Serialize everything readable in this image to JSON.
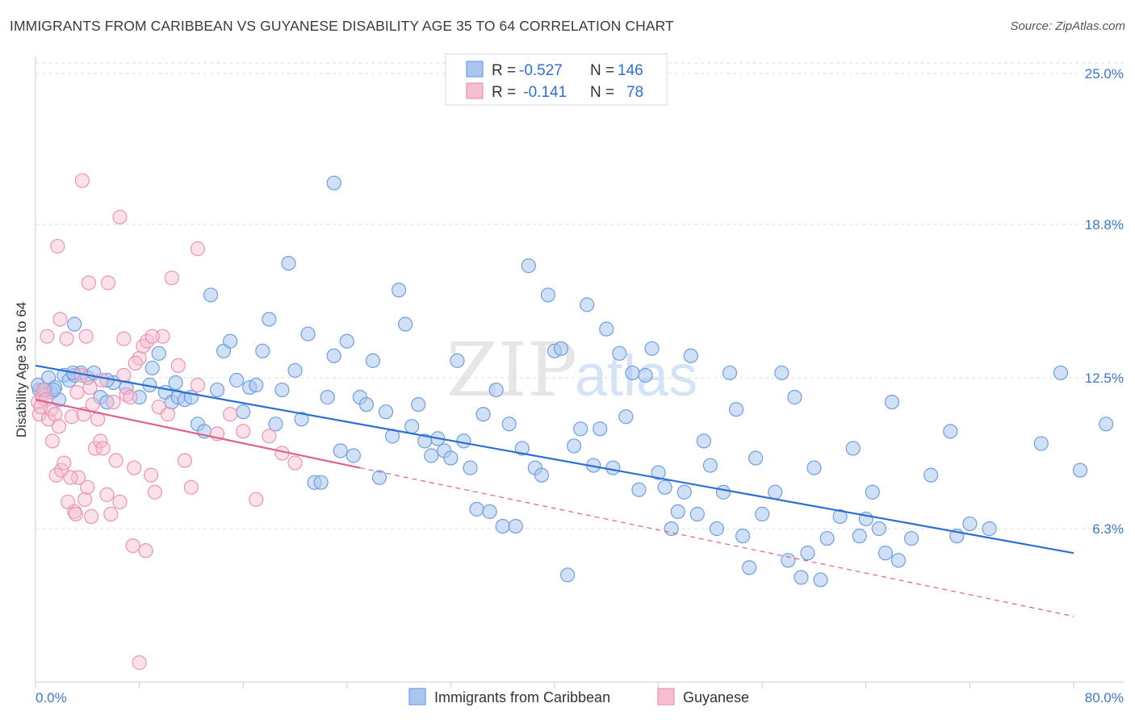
{
  "header": {
    "title": "IMMIGRANTS FROM CARIBBEAN VS GUYANESE DISABILITY AGE 35 TO 64 CORRELATION CHART",
    "source": "Source: ZipAtlas.com"
  },
  "watermark": {
    "zip": "ZIP",
    "atlas": "atlas"
  },
  "legend_box": {
    "rows": [
      {
        "r_label": "R = ",
        "r_value": "-0.527",
        "n_label": "N = ",
        "n_value": "146"
      },
      {
        "r_label": "R = ",
        "r_value": " -0.141",
        "n_label": "N = ",
        "n_value": "78"
      }
    ]
  },
  "colors": {
    "blue_fill": "#a9c6ef",
    "blue_stroke": "#6f9fe0",
    "blue_line": "#2b6fd2",
    "pink_fill": "#f6bcd0",
    "pink_stroke": "#ee93b3",
    "pink_line": "#e0608e",
    "grid": "#dddddd",
    "axis_label": "#3a78c9"
  },
  "chart_data": {
    "type": "scatter",
    "title": "IMMIGRANTS FROM CARIBBEAN VS GUYANESE DISABILITY AGE 35 TO 64 CORRELATION CHART",
    "xlabel": "",
    "ylabel": "Disability Age 35 to 64",
    "xlim": [
      0,
      80
    ],
    "ylim": [
      0,
      26.5
    ],
    "x_tick_labels": [
      "0.0%",
      "80.0%"
    ],
    "y_ticks": [
      6.3,
      12.5,
      18.8,
      25.0
    ],
    "y_tick_labels": [
      "6.3%",
      "12.5%",
      "18.8%",
      "25.0%"
    ],
    "grid": true,
    "legend_position": "bottom-center",
    "series": [
      {
        "name": "Immigrants from Caribbean",
        "R": -0.527,
        "N": 146,
        "trend": {
          "x": [
            0,
            80
          ],
          "y": [
            13.0,
            5.3
          ]
        },
        "points": [
          [
            0.3,
            12.0
          ],
          [
            0.5,
            11.8
          ],
          [
            0.8,
            12.0
          ],
          [
            1.0,
            12.5
          ],
          [
            1.2,
            11.9
          ],
          [
            1.5,
            12.1
          ],
          [
            1.8,
            11.6
          ],
          [
            2.2,
            12.6
          ],
          [
            2.6,
            12.4
          ],
          [
            3.0,
            12.6
          ],
          [
            3.5,
            12.7
          ],
          [
            4.0,
            12.5
          ],
          [
            4.5,
            12.7
          ],
          [
            5.0,
            11.7
          ],
          [
            5.5,
            11.5
          ],
          [
            6.0,
            12.3
          ],
          [
            0.2,
            12.2
          ],
          [
            0.7,
            12.0
          ],
          [
            1.4,
            12.0
          ],
          [
            2.9,
            12.7
          ],
          [
            3.0,
            14.7
          ],
          [
            5.5,
            12.4
          ],
          [
            7.0,
            12.1
          ],
          [
            8.0,
            11.7
          ],
          [
            8.8,
            12.2
          ],
          [
            9.0,
            12.9
          ],
          [
            9.5,
            13.5
          ],
          [
            10.0,
            11.9
          ],
          [
            10.5,
            11.5
          ],
          [
            11.0,
            11.7
          ],
          [
            11.5,
            11.6
          ],
          [
            12.0,
            11.7
          ],
          [
            12.5,
            10.6
          ],
          [
            13.0,
            10.3
          ],
          [
            13.5,
            15.9
          ],
          [
            14.0,
            12.0
          ],
          [
            14.5,
            13.6
          ],
          [
            15.0,
            14.0
          ],
          [
            15.5,
            12.4
          ],
          [
            16.0,
            11.1
          ],
          [
            16.5,
            12.1
          ],
          [
            17.0,
            12.2
          ],
          [
            17.5,
            13.6
          ],
          [
            18.0,
            14.9
          ],
          [
            18.5,
            10.6
          ],
          [
            19.0,
            12.0
          ],
          [
            19.5,
            17.2
          ],
          [
            20.0,
            12.8
          ],
          [
            20.5,
            10.8
          ],
          [
            21.0,
            14.3
          ],
          [
            21.5,
            8.2
          ],
          [
            22.0,
            8.2
          ],
          [
            22.5,
            11.7
          ],
          [
            23.0,
            13.4
          ],
          [
            23.5,
            9.5
          ],
          [
            24.0,
            14.0
          ],
          [
            24.5,
            9.3
          ],
          [
            25.0,
            11.7
          ],
          [
            25.5,
            11.4
          ],
          [
            26.0,
            13.2
          ],
          [
            26.5,
            8.4
          ],
          [
            27.0,
            11.1
          ],
          [
            27.5,
            10.1
          ],
          [
            28.0,
            16.1
          ],
          [
            28.5,
            14.7
          ],
          [
            29.0,
            10.5
          ],
          [
            29.5,
            11.4
          ],
          [
            30.0,
            9.9
          ],
          [
            30.5,
            9.3
          ],
          [
            31.0,
            10.0
          ],
          [
            31.5,
            9.5
          ],
          [
            32.0,
            9.2
          ],
          [
            32.5,
            13.2
          ],
          [
            33.0,
            9.9
          ],
          [
            33.5,
            8.8
          ],
          [
            34.0,
            7.1
          ],
          [
            34.5,
            11.0
          ],
          [
            35.0,
            7.0
          ],
          [
            35.5,
            12.0
          ],
          [
            36.0,
            6.4
          ],
          [
            36.5,
            10.6
          ],
          [
            37.0,
            6.4
          ],
          [
            37.5,
            9.6
          ],
          [
            38.0,
            17.1
          ],
          [
            38.5,
            8.8
          ],
          [
            39.0,
            8.5
          ],
          [
            39.5,
            15.9
          ],
          [
            40.0,
            13.6
          ],
          [
            40.5,
            13.7
          ],
          [
            41.0,
            4.4
          ],
          [
            41.5,
            9.7
          ],
          [
            42.0,
            10.4
          ],
          [
            42.5,
            15.5
          ],
          [
            43.0,
            8.9
          ],
          [
            43.5,
            10.4
          ],
          [
            44.0,
            14.5
          ],
          [
            44.5,
            8.8
          ],
          [
            45.0,
            13.5
          ],
          [
            45.5,
            10.9
          ],
          [
            46.0,
            12.7
          ],
          [
            46.5,
            7.9
          ],
          [
            47.0,
            12.6
          ],
          [
            47.5,
            13.7
          ],
          [
            48.0,
            8.6
          ],
          [
            48.5,
            8.0
          ],
          [
            49.0,
            6.3
          ],
          [
            49.5,
            7.0
          ],
          [
            50.0,
            7.8
          ],
          [
            50.5,
            13.4
          ],
          [
            51.0,
            6.9
          ],
          [
            51.5,
            9.9
          ],
          [
            52.0,
            8.9
          ],
          [
            52.5,
            6.3
          ],
          [
            53.0,
            7.8
          ],
          [
            53.5,
            12.7
          ],
          [
            54.0,
            11.2
          ],
          [
            54.5,
            6.0
          ],
          [
            55.0,
            4.7
          ],
          [
            55.5,
            9.2
          ],
          [
            56.0,
            6.9
          ],
          [
            57.0,
            7.8
          ],
          [
            57.5,
            12.7
          ],
          [
            58.0,
            5.0
          ],
          [
            58.5,
            11.7
          ],
          [
            59.0,
            4.3
          ],
          [
            59.5,
            5.3
          ],
          [
            60.0,
            8.8
          ],
          [
            60.5,
            4.2
          ],
          [
            61.0,
            5.9
          ],
          [
            62.0,
            6.8
          ],
          [
            63.0,
            9.6
          ],
          [
            63.5,
            6.0
          ],
          [
            64.0,
            6.7
          ],
          [
            64.5,
            7.8
          ],
          [
            65.0,
            6.3
          ],
          [
            65.5,
            5.3
          ],
          [
            66.0,
            11.5
          ],
          [
            66.5,
            5.0
          ],
          [
            67.5,
            5.9
          ],
          [
            69.0,
            8.5
          ],
          [
            70.5,
            10.3
          ],
          [
            71.0,
            6.0
          ],
          [
            72.0,
            6.5
          ],
          [
            73.5,
            6.3
          ],
          [
            77.5,
            9.8
          ],
          [
            79.0,
            12.7
          ],
          [
            80.5,
            8.7
          ],
          [
            82.5,
            10.6
          ],
          [
            23.0,
            20.5
          ],
          [
            10.8,
            12.3
          ]
        ]
      },
      {
        "name": "Guyanese",
        "R": -0.141,
        "N": 78,
        "trend": {
          "x": [
            0,
            25
          ],
          "y": [
            11.6,
            8.8
          ]
        },
        "trend_extension": {
          "x": [
            25,
            80
          ],
          "y": [
            8.8,
            2.7
          ]
        },
        "points": [
          [
            0.2,
            11.5
          ],
          [
            0.3,
            11.0
          ],
          [
            0.5,
            11.8
          ],
          [
            0.6,
            12.0
          ],
          [
            0.8,
            11.6
          ],
          [
            1.0,
            10.8
          ],
          [
            1.2,
            11.2
          ],
          [
            1.3,
            9.9
          ],
          [
            1.5,
            11.0
          ],
          [
            1.6,
            8.5
          ],
          [
            1.8,
            10.5
          ],
          [
            2.0,
            8.7
          ],
          [
            2.2,
            9.0
          ],
          [
            2.5,
            7.4
          ],
          [
            2.8,
            10.9
          ],
          [
            3.0,
            7.0
          ],
          [
            3.2,
            11.9
          ],
          [
            3.3,
            8.4
          ],
          [
            3.5,
            12.6
          ],
          [
            3.7,
            11.0
          ],
          [
            3.8,
            7.5
          ],
          [
            4.0,
            8.0
          ],
          [
            4.2,
            12.1
          ],
          [
            4.4,
            11.4
          ],
          [
            4.6,
            9.6
          ],
          [
            4.8,
            10.8
          ],
          [
            5.0,
            9.9
          ],
          [
            5.2,
            9.6
          ],
          [
            5.5,
            7.7
          ],
          [
            5.8,
            6.9
          ],
          [
            6.0,
            11.5
          ],
          [
            6.2,
            9.1
          ],
          [
            6.5,
            7.4
          ],
          [
            6.8,
            12.6
          ],
          [
            7.0,
            11.8
          ],
          [
            7.3,
            11.7
          ],
          [
            7.6,
            8.8
          ],
          [
            8.0,
            13.3
          ],
          [
            8.3,
            13.8
          ],
          [
            8.6,
            14.0
          ],
          [
            8.9,
            8.5
          ],
          [
            9.2,
            7.8
          ],
          [
            9.5,
            11.3
          ],
          [
            9.8,
            14.2
          ],
          [
            10.2,
            11.0
          ],
          [
            10.5,
            16.6
          ],
          [
            11.0,
            13.0
          ],
          [
            11.5,
            9.1
          ],
          [
            12.0,
            8.0
          ],
          [
            12.5,
            12.2
          ],
          [
            0.9,
            14.2
          ],
          [
            1.9,
            14.9
          ],
          [
            2.4,
            14.1
          ],
          [
            3.9,
            14.2
          ],
          [
            5.1,
            12.4
          ],
          [
            7.7,
            13.1
          ],
          [
            4.1,
            16.4
          ],
          [
            5.6,
            16.4
          ],
          [
            1.7,
            17.9
          ],
          [
            3.6,
            20.6
          ],
          [
            6.5,
            19.1
          ],
          [
            12.5,
            17.8
          ],
          [
            8.0,
            0.8
          ],
          [
            8.5,
            5.4
          ],
          [
            7.5,
            5.6
          ],
          [
            14.0,
            10.2
          ],
          [
            15.0,
            11.0
          ],
          [
            16.0,
            10.3
          ],
          [
            17.0,
            7.5
          ],
          [
            18.0,
            10.1
          ],
          [
            19.0,
            9.4
          ],
          [
            20.0,
            9.0
          ],
          [
            6.8,
            14.1
          ],
          [
            9.0,
            14.2
          ],
          [
            2.7,
            8.4
          ],
          [
            3.1,
            6.9
          ],
          [
            4.3,
            6.8
          ],
          [
            0.4,
            11.3
          ]
        ]
      }
    ]
  },
  "bottom_legend": {
    "items": [
      "Immigrants from Caribbean",
      "Guyanese"
    ]
  }
}
